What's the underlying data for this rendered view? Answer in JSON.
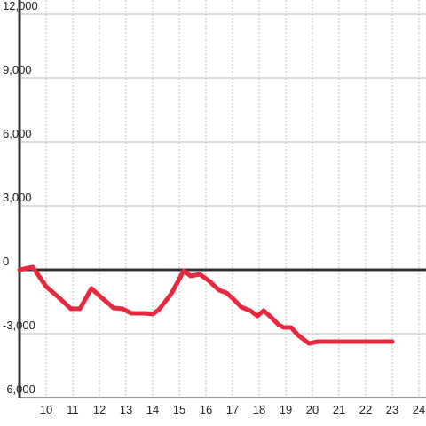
{
  "chart_data": {
    "type": "line",
    "x": [
      9,
      9.5,
      10,
      10.43,
      10.93,
      11.27,
      11.7,
      12.03,
      12.53,
      12.87,
      13.2,
      13.7,
      14,
      14.23,
      14.7,
      15.17,
      15.43,
      15.77,
      16.1,
      16.5,
      16.77,
      17.07,
      17.33,
      17.67,
      17.93,
      18.17,
      18.4,
      18.73,
      18.93,
      19.2,
      19.47,
      19.87,
      20.2,
      23
    ],
    "series": [
      {
        "color": "#e8283c",
        "values": [
          0,
          125,
          -790,
          -1250,
          -1830,
          -1830,
          -875,
          -1250,
          -1790,
          -1830,
          -2040,
          -2040,
          -2080,
          -1875,
          -1125,
          -40,
          -290,
          -210,
          -500,
          -960,
          -1080,
          -1420,
          -1750,
          -1920,
          -2170,
          -1920,
          -2170,
          -2580,
          -2710,
          -2710,
          -3080,
          -3460,
          -3375,
          -3375
        ]
      }
    ],
    "xlim": [
      9,
      24.3
    ],
    "ylim": [
      -6000,
      12000
    ],
    "xticks": [
      10,
      11,
      12,
      13,
      14,
      15,
      16,
      17,
      18,
      19,
      20,
      21,
      22,
      23,
      24
    ],
    "yticks": [
      {
        "value": -6000,
        "label": "-6,000"
      },
      {
        "value": -3000,
        "label": "-3,000"
      },
      0,
      {
        "value": 3000,
        "label": "3,000"
      },
      {
        "value": 6000,
        "label": "6,000"
      },
      {
        "value": 9000,
        "label": "9,000"
      },
      {
        "value": 12000,
        "label": "12,000"
      }
    ],
    "grid": true
  }
}
